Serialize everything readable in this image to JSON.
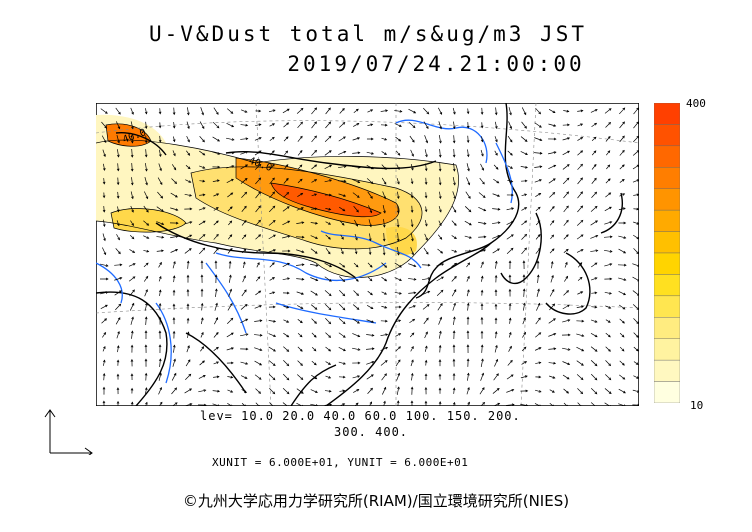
{
  "header": {
    "title": "U-V&Dust total m/s&ug/m3 JST",
    "datetime": "2019/07/24.21:00:00"
  },
  "legend": {
    "max_label": "400",
    "min_label": "10",
    "colors": [
      "#ffffe0",
      "#fff8c0",
      "#fff3a0",
      "#ffec80",
      "#ffe650",
      "#ffe020",
      "#ffd400",
      "#ffc000",
      "#ffaa00",
      "#ff9400",
      "#ff7e00",
      "#ff6800",
      "#ff5200",
      "#ff4000"
    ]
  },
  "levels": {
    "line1": "lev= 10.0 20.0 40.0 60.0 100. 150. 200.",
    "line2": "300. 400."
  },
  "units": {
    "text": "XUNIT = 6.000E+01, YUNIT = 6.000E+01"
  },
  "map": {
    "contour_labels": [
      "40.0",
      "40.0"
    ],
    "dust_colors": {
      "low": "#fff6c0",
      "mid": "#ffd84a",
      "high": "#ff9a10",
      "peak": "#ff5a00"
    },
    "coast_color": "#000000",
    "river_color": "#1f6bff"
  },
  "credit": "©九州大学応用力学研究所(RIAM)/国立環境研究所(NIES)"
}
